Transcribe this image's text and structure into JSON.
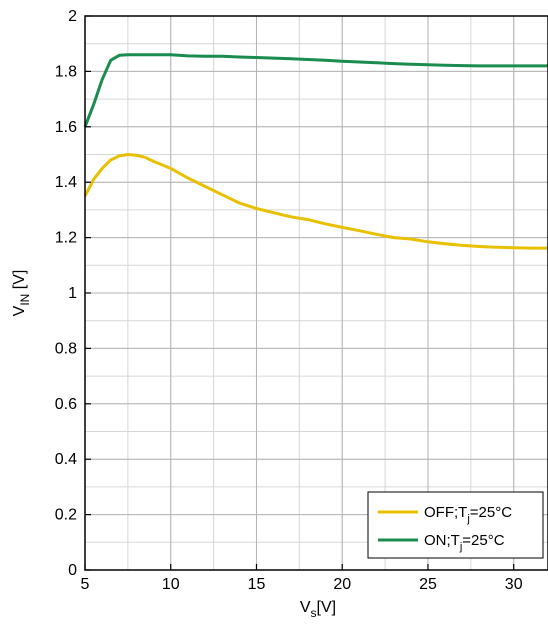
{
  "chart_data": {
    "type": "line",
    "title": "",
    "xlabel": {
      "main": "V",
      "sub": "s",
      "unit": "[V]"
    },
    "ylabel": {
      "main": "V",
      "sub": "IN",
      "unit": "[V]"
    },
    "xlim": [
      5,
      32
    ],
    "ylim": [
      0,
      2
    ],
    "x_ticks": [
      5,
      10,
      15,
      20,
      25,
      30
    ],
    "x_tick_labels": [
      "5",
      "10",
      "15",
      "20",
      "25",
      "30"
    ],
    "y_ticks": [
      0,
      0.2,
      0.4,
      0.6,
      0.8,
      1,
      1.2,
      1.4,
      1.6,
      1.8,
      2
    ],
    "y_tick_labels": [
      "0",
      "0.2",
      "0.4",
      "0.6",
      "0.8",
      "1",
      "1.2",
      "1.4",
      "1.6",
      "1.8",
      "2"
    ],
    "x_minor_step": 2.5,
    "y_minor_step": 0.1,
    "grid": true,
    "legend_position": "bottom-right",
    "series": [
      {
        "name_parts": {
          "pre": "OFF;T",
          "sub": "j",
          "post": "=25°C"
        },
        "color": "#e8c000",
        "x": [
          5,
          5.5,
          6,
          6.5,
          7,
          7.5,
          8,
          8.5,
          9,
          10,
          11,
          12,
          13,
          14,
          15,
          16,
          17,
          18,
          19,
          20,
          21,
          22,
          23,
          24,
          25,
          26,
          27,
          28,
          29,
          30,
          31,
          32
        ],
        "y": [
          1.35,
          1.41,
          1.45,
          1.48,
          1.495,
          1.5,
          1.497,
          1.49,
          1.475,
          1.45,
          1.415,
          1.385,
          1.355,
          1.325,
          1.305,
          1.29,
          1.275,
          1.265,
          1.25,
          1.237,
          1.225,
          1.212,
          1.2,
          1.195,
          1.185,
          1.178,
          1.172,
          1.168,
          1.165,
          1.163,
          1.162,
          1.162
        ]
      },
      {
        "name_parts": {
          "pre": "ON;T",
          "sub": "j",
          "post": "=25°C"
        },
        "color": "#1a8c4e",
        "x": [
          5,
          5.5,
          6,
          6.5,
          7,
          7.5,
          8,
          9,
          10,
          11,
          12,
          13,
          14,
          15,
          16,
          17,
          18,
          19,
          20,
          21,
          22,
          23,
          24,
          25,
          26,
          27,
          28,
          29,
          30,
          31,
          32
        ],
        "y": [
          1.6,
          1.68,
          1.77,
          1.84,
          1.858,
          1.86,
          1.86,
          1.86,
          1.86,
          1.856,
          1.855,
          1.855,
          1.852,
          1.85,
          1.848,
          1.846,
          1.843,
          1.84,
          1.837,
          1.834,
          1.831,
          1.828,
          1.826,
          1.824,
          1.822,
          1.821,
          1.82,
          1.82,
          1.82,
          1.82,
          1.82
        ]
      }
    ]
  }
}
